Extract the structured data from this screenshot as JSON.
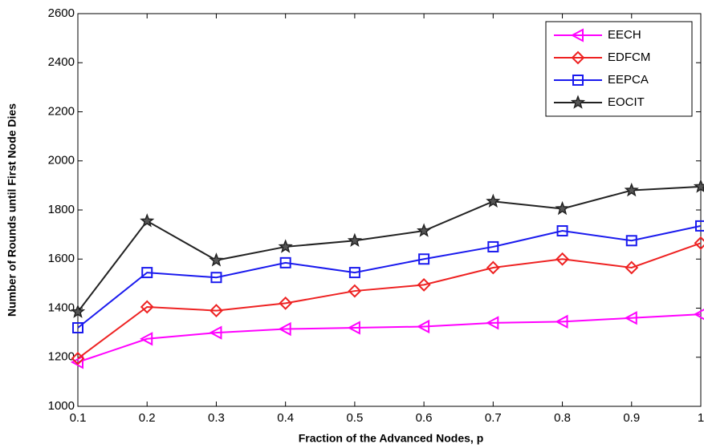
{
  "chart_data": {
    "type": "line",
    "x_label": "Fraction of the Advanced Nodes, p",
    "y_label": "Number of Rounds until First Node Dies",
    "x": [
      0.1,
      0.2,
      0.3,
      0.4,
      0.5,
      0.6,
      0.7,
      0.8,
      0.9,
      1
    ],
    "series": [
      {
        "name": "EECH",
        "color": "#ff00ff",
        "marker": "triangle-left",
        "values": [
          1180,
          1275,
          1300,
          1315,
          1320,
          1325,
          1340,
          1345,
          1360,
          1375
        ]
      },
      {
        "name": "EDFCM",
        "color": "#ee2222",
        "marker": "diamond",
        "values": [
          1195,
          1405,
          1390,
          1420,
          1470,
          1495,
          1565,
          1600,
          1565,
          1665
        ]
      },
      {
        "name": "EEPCA",
        "color": "#1a1aee",
        "marker": "square",
        "values": [
          1320,
          1545,
          1525,
          1585,
          1545,
          1600,
          1650,
          1715,
          1675,
          1735
        ]
      },
      {
        "name": "EOCIT",
        "color": "#222222",
        "marker": "star",
        "values": [
          1385,
          1755,
          1595,
          1650,
          1675,
          1715,
          1835,
          1805,
          1880,
          1895
        ]
      }
    ],
    "xlim": [
      0.1,
      1
    ],
    "xticks": [
      0.1,
      0.2,
      0.3,
      0.4,
      0.5,
      0.6,
      0.7,
      0.8,
      0.9,
      1
    ],
    "ylim": [
      1000,
      2600
    ],
    "yticks": [
      1000,
      1200,
      1400,
      1600,
      1800,
      2000,
      2200,
      2400,
      2600
    ],
    "legend": "upper-right"
  }
}
